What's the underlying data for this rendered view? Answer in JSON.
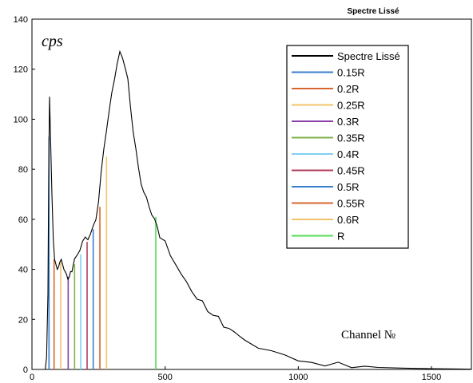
{
  "chart_data": {
    "type": "line",
    "title": "Spectre Lissé",
    "ylabel": "cps",
    "xlabel": "Channel №",
    "xlim": [
      0,
      1650
    ],
    "ylim": [
      0,
      140
    ],
    "xticks": [
      0,
      500,
      1000,
      1500
    ],
    "yticks": [
      0,
      20,
      40,
      60,
      80,
      100,
      120,
      140
    ],
    "grid": false,
    "legend_position": "top-right",
    "spectrum": {
      "name": "Spectre Lissé",
      "color": "#000000",
      "x": [
        50,
        55,
        60,
        63,
        66,
        70,
        75,
        80,
        85,
        90,
        95,
        100,
        105,
        110,
        115,
        120,
        125,
        130,
        135,
        140,
        145,
        150,
        160,
        170,
        180,
        190,
        200,
        210,
        220,
        230,
        240,
        250,
        260,
        270,
        280,
        290,
        300,
        310,
        320,
        330,
        340,
        350,
        360,
        370,
        380,
        390,
        400,
        410,
        420,
        430,
        440,
        450,
        460,
        470,
        480,
        500,
        520,
        540,
        560,
        580,
        600,
        620,
        640,
        660,
        680,
        700,
        720,
        740,
        760,
        780,
        800,
        850,
        900,
        950,
        1000,
        1050,
        1100,
        1150,
        1200,
        1250,
        1300,
        1400,
        1500,
        1600,
        1650
      ],
      "y": [
        0,
        5,
        30,
        80,
        109,
        92,
        70,
        52,
        44,
        42,
        40,
        41,
        43,
        44,
        42,
        40,
        39,
        38,
        36,
        37,
        38,
        40,
        44,
        46,
        48,
        50,
        52,
        53,
        55,
        57,
        60,
        67,
        78,
        88,
        97,
        104,
        110,
        116,
        122,
        126,
        125,
        122,
        116,
        104,
        95,
        88,
        80,
        75,
        72,
        68,
        64,
        62,
        60,
        57,
        54,
        50,
        46,
        42,
        38,
        35,
        31,
        29,
        26,
        24,
        22,
        20,
        18,
        16,
        15,
        13,
        12,
        9,
        7,
        5,
        4,
        3,
        2,
        1.5,
        1.2,
        1,
        0.8,
        0.5,
        0.3,
        0.2,
        0.1
      ]
    },
    "series": [
      {
        "name": "0.15R",
        "color": "#3a7fcc",
        "x": 64,
        "y": 93
      },
      {
        "name": "0.2R",
        "color": "#d9662f",
        "x": 83,
        "y": 44
      },
      {
        "name": "0.25R",
        "color": "#f0c36a",
        "x": 108,
        "y": 43
      },
      {
        "name": "0.3R",
        "color": "#8a3fa8",
        "x": 136,
        "y": 37
      },
      {
        "name": "0.35R",
        "color": "#7fb24a",
        "x": 160,
        "y": 42
      },
      {
        "name": "0.4R",
        "color": "#7fd0f0",
        "x": 183,
        "y": 46
      },
      {
        "name": "0.45R",
        "color": "#b33d5e",
        "x": 207,
        "y": 51
      },
      {
        "name": "0.5R",
        "color": "#3a7fcc",
        "x": 230,
        "y": 56
      },
      {
        "name": "0.55R",
        "color": "#d9662f",
        "x": 255,
        "y": 65
      },
      {
        "name": "0.6R",
        "color": "#f0c36a",
        "x": 280,
        "y": 85
      },
      {
        "name": "R",
        "color": "#55dd55",
        "x": 465,
        "y": 61
      }
    ]
  }
}
